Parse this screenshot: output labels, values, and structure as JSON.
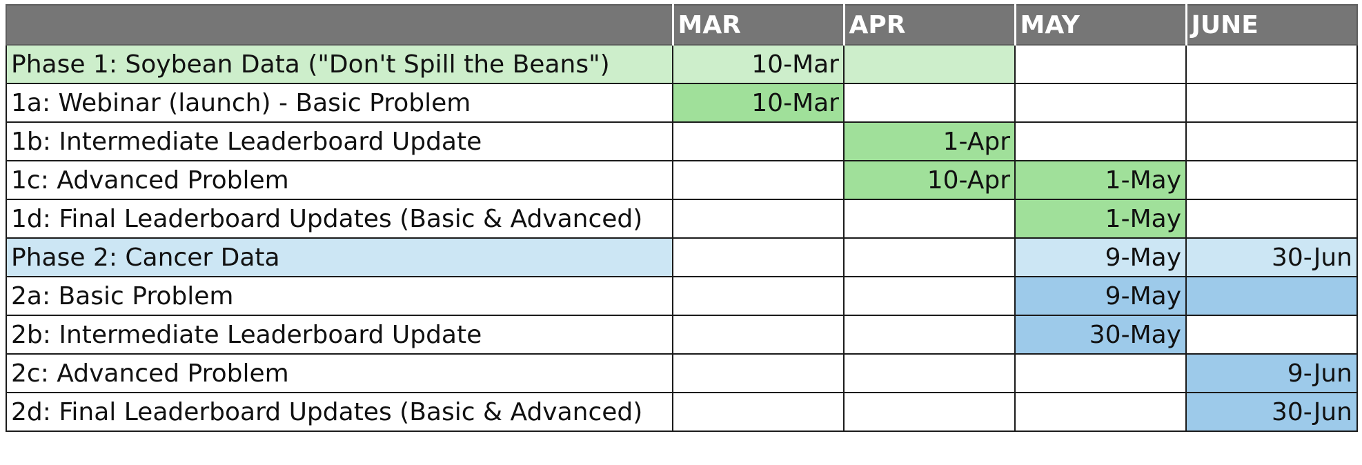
{
  "header": {
    "task_label": "",
    "months": [
      "MAR",
      "APR",
      "MAY",
      "JUNE"
    ]
  },
  "fills": {
    "light_green": "#cdeecb",
    "green": "#a0e09a",
    "light_blue": "#cce6f4",
    "blue": "#9dcaea",
    "header": "#767676"
  },
  "rows": [
    {
      "task": "Phase 1: Soybean Data (\"Don't Spill the Beans\")",
      "mar": "10-Mar",
      "apr": "",
      "may": "",
      "june": ""
    },
    {
      "task": "1a: Webinar (launch) - Basic Problem",
      "mar": "10-Mar",
      "apr": "",
      "may": "",
      "june": ""
    },
    {
      "task": "1b: Intermediate Leaderboard Update",
      "mar": "",
      "apr": "1-Apr",
      "may": "",
      "june": ""
    },
    {
      "task": "1c: Advanced Problem",
      "mar": "",
      "apr": "10-Apr",
      "may": "1-May",
      "june": ""
    },
    {
      "task": "1d: Final Leaderboard Updates (Basic & Advanced)",
      "mar": "",
      "apr": "",
      "may": "1-May",
      "june": ""
    },
    {
      "task": "Phase 2: Cancer Data",
      "mar": "",
      "apr": "",
      "may": "9-May",
      "june": "30-Jun"
    },
    {
      "task": "2a: Basic Problem",
      "mar": "",
      "apr": "",
      "may": "9-May",
      "june": ""
    },
    {
      "task": "2b: Intermediate Leaderboard Update",
      "mar": "",
      "apr": "",
      "may": "30-May",
      "june": ""
    },
    {
      "task": "2c: Advanced Problem",
      "mar": "",
      "apr": "",
      "may": "",
      "june": "9-Jun"
    },
    {
      "task": "2d: Final Leaderboard Updates (Basic & Advanced)",
      "mar": "",
      "apr": "",
      "may": "",
      "june": "30-Jun"
    }
  ]
}
